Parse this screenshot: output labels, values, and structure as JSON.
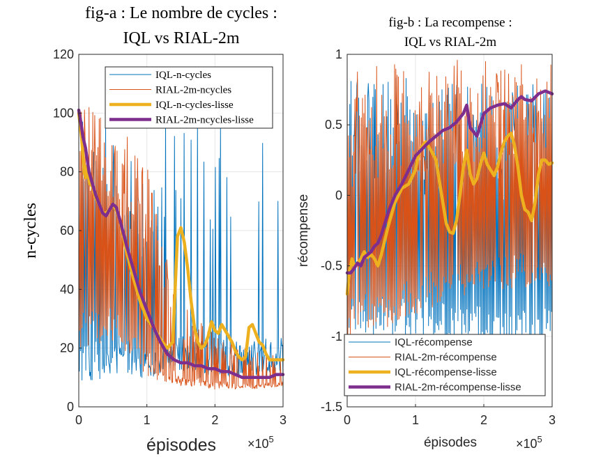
{
  "chart_data": [
    {
      "type": "line",
      "title_line1": "fig-a : Le nombre de cycles :",
      "title_line2": "IQL vs RIAL-2m",
      "xlabel": "épisodes",
      "ylabel": "n-cycles",
      "x_exponent": "×10",
      "x_exponent_power": "5",
      "xlim": [
        0,
        3
      ],
      "ylim": [
        0,
        120
      ],
      "xticks": [
        0,
        1,
        2,
        3
      ],
      "yticks": [
        0,
        20,
        40,
        60,
        80,
        100,
        120
      ],
      "grid": true,
      "legend_position": "top-right",
      "series": [
        {
          "name": "IQL-n-cycles",
          "color": "#0072BD",
          "kind": "raw",
          "x": [
            0,
            0.5,
            1.0,
            1.3,
            1.5,
            1.7,
            2.0,
            2.3,
            2.5,
            2.7,
            3.0
          ],
          "lower": [
            8,
            10,
            10,
            11,
            11,
            10,
            10,
            10,
            10,
            10,
            10
          ],
          "upper": [
            100,
            98,
            75,
            100,
            100,
            100,
            100,
            100,
            100,
            100,
            100
          ],
          "spike_rate": [
            1.0,
            0.8,
            0.55,
            0.3,
            0.25,
            0.22,
            0.2,
            0.2,
            0.18,
            0.18,
            0.16
          ]
        },
        {
          "name": "RIAL-2m-ncycles",
          "color": "#D95319",
          "kind": "raw",
          "x": [
            0,
            0.5,
            1.0,
            1.3,
            1.5,
            2.0,
            2.5,
            3.0
          ],
          "lower": [
            20,
            22,
            10,
            8,
            7,
            6,
            6,
            7
          ],
          "upper": [
            103,
            100,
            82,
            50,
            35,
            25,
            20,
            18
          ],
          "spike_rate": [
            1.0,
            1.0,
            0.9,
            0.7,
            0.6,
            0.55,
            0.5,
            0.5
          ]
        },
        {
          "name": "IQL-n-cycles-lisse",
          "color": "#EDB120",
          "kind": "smooth",
          "x": [
            0,
            0.04,
            0.08,
            0.1,
            0.12,
            0.16,
            0.2,
            0.25,
            0.3,
            0.35,
            0.4,
            0.45,
            0.5,
            0.55,
            0.6,
            0.7,
            0.8,
            0.9,
            1.0,
            1.1,
            1.2,
            1.3,
            1.38,
            1.45,
            1.5,
            1.55,
            1.6,
            1.65,
            1.7,
            1.75,
            1.8,
            1.85,
            1.9,
            1.95,
            2.0,
            2.05,
            2.1,
            2.15,
            2.2,
            2.25,
            2.3,
            2.35,
            2.4,
            2.45,
            2.5,
            2.55,
            2.6,
            2.65,
            2.7,
            2.75,
            2.8,
            2.85,
            2.9,
            2.95,
            3.0
          ],
          "y": [
            100,
            92,
            80,
            78,
            82,
            76,
            75,
            71,
            69,
            66,
            66,
            67,
            69,
            67,
            64,
            53,
            44,
            36,
            30,
            27,
            23,
            20,
            22,
            58,
            61,
            56,
            47,
            36,
            27,
            22,
            20,
            21,
            24,
            29,
            26,
            25,
            28,
            26,
            24,
            22,
            19,
            17,
            16,
            17,
            27,
            28,
            25,
            22,
            21,
            18,
            16,
            16,
            16,
            16,
            16
          ]
        },
        {
          "name": "RIAL-2m-ncycles-lisse",
          "color": "#7E2F8E",
          "kind": "smooth",
          "x": [
            0,
            0.03,
            0.06,
            0.1,
            0.15,
            0.2,
            0.25,
            0.3,
            0.35,
            0.4,
            0.45,
            0.5,
            0.55,
            0.6,
            0.7,
            0.8,
            0.9,
            1.0,
            1.1,
            1.2,
            1.3,
            1.4,
            1.5,
            1.6,
            1.7,
            1.8,
            1.9,
            2.0,
            2.1,
            2.2,
            2.3,
            2.4,
            2.5,
            2.6,
            2.7,
            2.8,
            2.9,
            3.0
          ],
          "y": [
            101,
            97,
            92,
            88,
            80,
            76,
            72,
            69,
            66,
            65,
            67,
            69,
            68,
            64,
            55,
            47,
            39,
            33,
            27,
            22,
            18,
            16,
            15,
            15,
            14,
            14,
            13,
            13,
            12,
            12,
            11,
            10,
            10,
            10,
            10,
            10,
            11,
            11
          ]
        }
      ]
    },
    {
      "type": "line",
      "title_line1": "fig-b : La recompense :",
      "title_line2": "IQL vs RIAL-2m",
      "xlabel": "épisodes",
      "ylabel": "récompense",
      "x_exponent": "×10",
      "x_exponent_power": "5",
      "xlim": [
        0,
        3
      ],
      "ylim": [
        -1.5,
        1
      ],
      "xticks": [
        0,
        1,
        2,
        3
      ],
      "yticks": [
        -1.5,
        -1,
        -0.5,
        0,
        0.5,
        1
      ],
      "grid": true,
      "legend_position": "bottom-right",
      "series": [
        {
          "name": "IQL-récompense",
          "color": "#0072BD",
          "kind": "raw",
          "x": [
            0,
            0.5,
            1.0,
            1.5,
            2.0,
            2.5,
            3.0
          ],
          "lower": [
            -1.0,
            -1.0,
            -1.0,
            -1.05,
            -1.05,
            -1.05,
            -1.05
          ],
          "upper": [
            0.85,
            0.85,
            0.85,
            0.8,
            0.8,
            0.8,
            0.8
          ],
          "spike_rate": [
            1.0,
            1.0,
            1.0,
            1.0,
            1.0,
            1.0,
            1.0
          ]
        },
        {
          "name": "RIAL-2m-récompense",
          "color": "#D95319",
          "kind": "raw",
          "x": [
            0,
            0.5,
            1.0,
            1.5,
            2.0,
            2.5,
            3.0
          ],
          "lower": [
            -1.0,
            -0.95,
            -0.85,
            -0.75,
            -0.7,
            -0.65,
            -0.65
          ],
          "upper": [
            0.9,
            0.92,
            0.95,
            0.96,
            0.96,
            0.96,
            0.96
          ],
          "spike_rate": [
            1.0,
            1.0,
            1.0,
            1.0,
            1.0,
            1.0,
            1.0
          ]
        },
        {
          "name": "IQL-récompense-lisse",
          "color": "#EDB120",
          "kind": "smooth",
          "x": [
            0,
            0.03,
            0.07,
            0.1,
            0.15,
            0.2,
            0.25,
            0.3,
            0.35,
            0.4,
            0.45,
            0.5,
            0.6,
            0.7,
            0.8,
            0.9,
            1.0,
            1.05,
            1.1,
            1.15,
            1.2,
            1.25,
            1.3,
            1.35,
            1.4,
            1.45,
            1.5,
            1.55,
            1.6,
            1.65,
            1.7,
            1.75,
            1.8,
            1.85,
            1.9,
            1.95,
            2.0,
            2.05,
            2.1,
            2.15,
            2.2,
            2.25,
            2.3,
            2.35,
            2.4,
            2.45,
            2.5,
            2.55,
            2.6,
            2.65,
            2.7,
            2.75,
            2.8,
            2.85,
            2.9,
            2.95,
            3.0
          ],
          "y": [
            -0.7,
            -0.55,
            -0.45,
            -0.5,
            -0.48,
            -0.45,
            -0.4,
            -0.44,
            -0.42,
            -0.45,
            -0.5,
            -0.42,
            -0.22,
            -0.05,
            0.05,
            0.08,
            0.18,
            0.3,
            0.35,
            0.38,
            0.34,
            0.3,
            0.25,
            0.1,
            -0.05,
            -0.2,
            -0.26,
            -0.27,
            -0.18,
            0.0,
            0.2,
            0.32,
            0.15,
            0.08,
            0.12,
            0.22,
            0.3,
            0.22,
            0.18,
            0.14,
            0.2,
            0.3,
            0.38,
            0.42,
            0.44,
            0.35,
            0.2,
            0.0,
            -0.1,
            -0.12,
            -0.18,
            -0.05,
            0.15,
            0.25,
            0.25,
            0.22,
            0.23
          ]
        },
        {
          "name": "RIAL-2m-récompense-lisse",
          "color": "#7E2F8E",
          "kind": "smooth",
          "x": [
            0,
            0.05,
            0.1,
            0.15,
            0.2,
            0.25,
            0.3,
            0.35,
            0.4,
            0.45,
            0.5,
            0.55,
            0.6,
            0.7,
            0.8,
            0.9,
            1.0,
            1.1,
            1.2,
            1.3,
            1.4,
            1.5,
            1.6,
            1.7,
            1.75,
            1.8,
            1.85,
            1.9,
            1.95,
            2.0,
            2.1,
            2.2,
            2.3,
            2.4,
            2.5,
            2.55,
            2.6,
            2.7,
            2.8,
            2.9,
            3.0
          ],
          "y": [
            -0.55,
            -0.55,
            -0.52,
            -0.48,
            -0.5,
            -0.44,
            -0.42,
            -0.4,
            -0.36,
            -0.34,
            -0.28,
            -0.2,
            -0.12,
            0.0,
            0.08,
            0.18,
            0.28,
            0.33,
            0.38,
            0.42,
            0.46,
            0.48,
            0.52,
            0.58,
            0.64,
            0.48,
            0.45,
            0.42,
            0.5,
            0.58,
            0.62,
            0.64,
            0.65,
            0.62,
            0.68,
            0.7,
            0.68,
            0.67,
            0.72,
            0.74,
            0.72
          ]
        }
      ]
    }
  ]
}
